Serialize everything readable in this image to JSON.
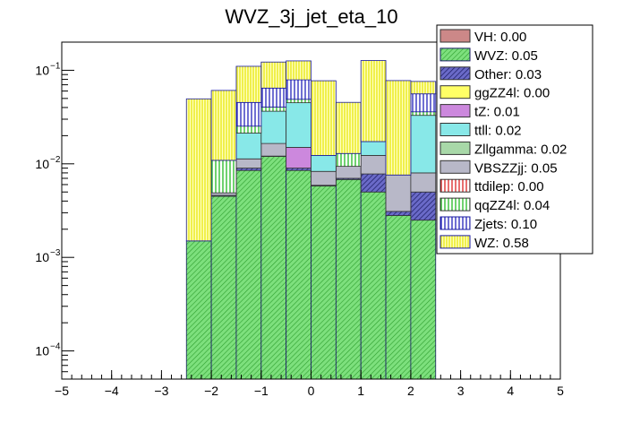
{
  "chart_data": {
    "type": "bar",
    "title": "WVZ_3j_jet_eta_10",
    "stacked": true,
    "yscale": "log",
    "xlim": [
      -5,
      5
    ],
    "ylim": [
      5e-05,
      0.2
    ],
    "xlabel": "",
    "ylabel": "",
    "x_ticks": [
      "−5",
      "−4",
      "−3",
      "−2",
      "−1",
      "0",
      "1",
      "2",
      "3",
      "4",
      "5"
    ],
    "y_ticks": [
      {
        "value": 0.0001,
        "label": "10",
        "exp": "−4"
      },
      {
        "value": 0.001,
        "label": "10",
        "exp": "−3"
      },
      {
        "value": 0.01,
        "label": "10",
        "exp": "−2"
      },
      {
        "value": 0.1,
        "label": "10",
        "exp": "−1"
      }
    ],
    "legend_position": "top-right",
    "bin_edges": [
      -2.5,
      -2.0,
      -1.5,
      -1.0,
      -0.5,
      0.0,
      0.5,
      1.0,
      1.5,
      2.0,
      2.5
    ],
    "series": [
      {
        "name": "WVZ",
        "legend": "WVZ: 0.05",
        "color": "#7de07d",
        "pattern": "diag",
        "values": [
          0.0015,
          0.0045,
          0.0085,
          0.012,
          0.0085,
          0.0058,
          0.0068,
          0.005,
          0.0028,
          0.0025
        ]
      },
      {
        "name": "Other",
        "legend": "Other: 0.03",
        "color": "#6a6ac8",
        "pattern": "diag-dark",
        "values": [
          0.0,
          0.0001,
          0.0005,
          0.0001,
          0.0005,
          0.0001,
          0.0002,
          0.0028,
          0.0003,
          0.0025
        ]
      },
      {
        "name": "VBSZZjj",
        "legend": "VBSZZjj: 0.05",
        "color": "#b8b8c8",
        "pattern": "solid",
        "values": [
          0.0,
          0.0003,
          0.0023,
          0.0044,
          0.0,
          0.0024,
          0.0024,
          0.0045,
          0.0045,
          0.003
        ]
      },
      {
        "name": "tZ",
        "legend": "tZ: 0.01",
        "color": "#cc88dd",
        "pattern": "solid",
        "values": [
          0.0,
          0.0,
          0.0,
          0.0,
          0.006,
          0.0,
          0.0,
          0.0,
          0.0,
          0.0
        ]
      },
      {
        "name": "Zllgamma",
        "legend": "Zllgamma: 0.02",
        "color": "#a8d8a8",
        "pattern": "solid",
        "values": [
          0.0,
          0.0,
          0.0,
          0.0,
          0.0,
          0.0,
          0.0,
          0.0,
          0.0,
          0.0
        ]
      },
      {
        "name": "ttll",
        "legend": "ttll: 0.02",
        "color": "#88e8e8",
        "pattern": "solid",
        "values": [
          0.0,
          0.0,
          0.01,
          0.02,
          0.03,
          0.004,
          0.0,
          0.005,
          0.0,
          0.025
        ]
      },
      {
        "name": "qqZZ4l",
        "legend": "qqZZ4l: 0.04",
        "color": "#44cc44",
        "pattern": "vert",
        "values": [
          0.0,
          0.006,
          0.004,
          0.004,
          0.004,
          0.0,
          0.0035,
          0.0,
          0.0,
          0.003
        ]
      },
      {
        "name": "ttdilep",
        "legend": "ttdilep: 0.00",
        "color": "#e04040",
        "pattern": "vert",
        "values": [
          0.0,
          0.0,
          0.0,
          0.0,
          0.0,
          0.0,
          0.0,
          0.0,
          0.0,
          0.0
        ]
      },
      {
        "name": "Zjets",
        "legend": "Zjets: 0.10",
        "color": "#3333cc",
        "pattern": "vert",
        "values": [
          0.0,
          0.0,
          0.02,
          0.024,
          0.03,
          0.0,
          0.0,
          0.0,
          0.0,
          0.02
        ]
      },
      {
        "name": "ggZZ4l",
        "legend": "ggZZ4l: 0.00",
        "color": "#ffff66",
        "pattern": "solid",
        "values": [
          0.0,
          0.0,
          0.0,
          0.0,
          0.0,
          0.0,
          0.0,
          0.0,
          0.0,
          0.0
        ]
      },
      {
        "name": "VH",
        "legend": "VH: 0.00",
        "color": "#cc8888",
        "pattern": "solid",
        "values": [
          0.0,
          0.0,
          0.0,
          0.0,
          0.0,
          0.0,
          0.0,
          0.0,
          0.0,
          0.0
        ]
      },
      {
        "name": "WZ",
        "legend": "WZ: 0.58",
        "color": "#ffff66",
        "pattern": "vert-yellow",
        "values": [
          0.048,
          0.05,
          0.065,
          0.058,
          0.047,
          0.065,
          0.0325,
          0.11,
          0.07,
          0.02
        ]
      }
    ],
    "legend_order": [
      "VH",
      "WVZ",
      "Other",
      "ggZZ4l",
      "tZ",
      "ttll",
      "Zllgamma",
      "VBSZZjj",
      "ttdilep",
      "qqZZ4l",
      "Zjets",
      "WZ"
    ]
  }
}
